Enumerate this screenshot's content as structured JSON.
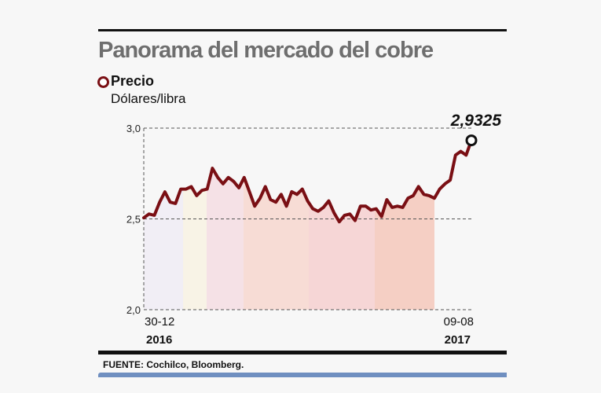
{
  "title": "Panorama del mercado del cobre",
  "legend": {
    "label": "Precio",
    "unit": "Dólares/libra",
    "marker_color": "#7a0f14"
  },
  "source": "FUENTE: Cochilco, Bloomberg.",
  "colors": {
    "line": "#7a0f14",
    "title": "#6e6e6e",
    "accent_bar": "#6f8fc0",
    "bands": [
      "#f1eef5",
      "#f8f3e6",
      "#f5e1e6",
      "#f7dcd5",
      "#f6d6d6",
      "#f5cfc4"
    ]
  },
  "chart_data": {
    "type": "line",
    "title": "Panorama del mercado del cobre",
    "ylabel": "Dólares/libra",
    "ylim": [
      2.0,
      3.0
    ],
    "yticks": [
      "2,0",
      "2,5",
      "3,0"
    ],
    "ytick_values": [
      2.0,
      2.5,
      3.0
    ],
    "x_start": {
      "date": "30-12",
      "year": "2016"
    },
    "x_end": {
      "date": "09-08",
      "year": "2017"
    },
    "grid": "dashed horizontal",
    "series": [
      {
        "name": "Precio",
        "values": [
          2.506,
          2.527,
          2.52,
          2.592,
          2.649,
          2.592,
          2.585,
          2.664,
          2.664,
          2.678,
          2.628,
          2.657,
          2.664,
          2.779,
          2.728,
          2.693,
          2.728,
          2.707,
          2.671,
          2.728,
          2.65,
          2.57,
          2.614,
          2.678,
          2.606,
          2.592,
          2.635,
          2.57,
          2.65,
          2.635,
          2.664,
          2.599,
          2.556,
          2.542,
          2.563,
          2.599,
          2.534,
          2.484,
          2.52,
          2.527,
          2.491,
          2.57,
          2.57,
          2.549,
          2.556,
          2.513,
          2.606,
          2.563,
          2.57,
          2.563,
          2.614,
          2.628,
          2.678,
          2.635,
          2.628,
          2.614,
          2.664,
          2.693,
          2.714,
          2.851,
          2.872,
          2.851,
          2.9325
        ]
      }
    ],
    "last_value_label": "2,9325"
  }
}
